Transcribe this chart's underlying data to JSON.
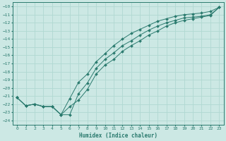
{
  "xlabel": "Humidex (Indice chaleur)",
  "xlim": [
    -0.5,
    23.5
  ],
  "ylim": [
    -24.5,
    -9.5
  ],
  "yticks": [
    -10,
    -11,
    -12,
    -13,
    -14,
    -15,
    -16,
    -17,
    -18,
    -19,
    -20,
    -21,
    -22,
    -23,
    -24
  ],
  "xticks": [
    0,
    1,
    2,
    3,
    4,
    5,
    6,
    7,
    8,
    9,
    10,
    11,
    12,
    13,
    14,
    15,
    16,
    17,
    18,
    19,
    20,
    21,
    22,
    23
  ],
  "bg_color": "#cce8e4",
  "grid_color": "#b0d8d2",
  "line_color": "#2a7a6e",
  "line1_x": [
    0,
    1,
    2,
    3,
    4,
    5,
    6,
    7,
    8,
    9,
    10,
    11,
    12,
    13,
    14,
    15,
    16,
    17,
    18,
    19,
    20,
    21,
    22,
    23
  ],
  "line1_y": [
    -21.2,
    -22.2,
    -22.0,
    -22.3,
    -22.3,
    -23.3,
    -23.3,
    -20.7,
    -19.4,
    -17.6,
    -16.5,
    -15.7,
    -14.8,
    -14.2,
    -13.5,
    -12.9,
    -12.4,
    -12.0,
    -11.7,
    -11.4,
    -11.3,
    -11.2,
    -11.0,
    -10.1
  ],
  "line2_x": [
    0,
    1,
    2,
    3,
    4,
    5,
    6,
    7,
    8,
    9,
    10,
    11,
    12,
    13,
    14,
    15,
    16,
    17,
    18,
    19,
    20,
    21,
    22,
    23
  ],
  "line2_y": [
    -21.2,
    -22.2,
    -22.0,
    -22.3,
    -22.3,
    -23.3,
    -21.3,
    -19.3,
    -18.3,
    -16.8,
    -15.8,
    -14.8,
    -14.0,
    -13.3,
    -12.8,
    -12.3,
    -11.8,
    -11.5,
    -11.2,
    -11.0,
    -10.9,
    -10.8,
    -10.6,
    -10.1
  ],
  "line3_x": [
    0,
    1,
    2,
    3,
    4,
    5,
    6,
    7,
    8,
    9,
    10,
    11,
    12,
    13,
    14,
    15,
    16,
    17,
    18,
    19,
    20,
    21,
    22,
    23
  ],
  "line3_y": [
    -21.2,
    -22.2,
    -22.0,
    -22.3,
    -22.3,
    -23.3,
    -22.3,
    -21.5,
    -20.2,
    -18.3,
    -17.2,
    -16.5,
    -15.5,
    -14.8,
    -14.2,
    -13.5,
    -13.0,
    -12.4,
    -12.0,
    -11.7,
    -11.5,
    -11.3,
    -11.1,
    -10.1
  ]
}
